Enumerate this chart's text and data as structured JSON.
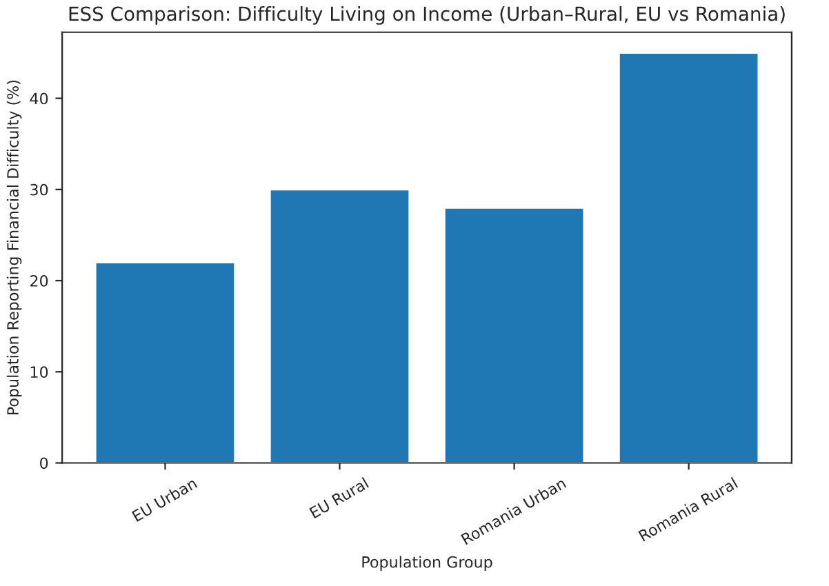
{
  "chart_data": {
    "type": "bar",
    "title": "ESS Comparison: Difficulty Living on Income (Urban–Rural, EU vs Romania)",
    "xlabel": "Population Group",
    "ylabel": "Population Reporting Financial Difficulty (%)",
    "categories": [
      "EU Urban",
      "EU Rural",
      "Romania Urban",
      "Romania Rural"
    ],
    "values": [
      22,
      30,
      28,
      45
    ],
    "color": "#1f77b4",
    "ylim": [
      0,
      47.25
    ],
    "yticks": [
      0,
      10,
      20,
      30,
      40
    ],
    "grid": false
  }
}
